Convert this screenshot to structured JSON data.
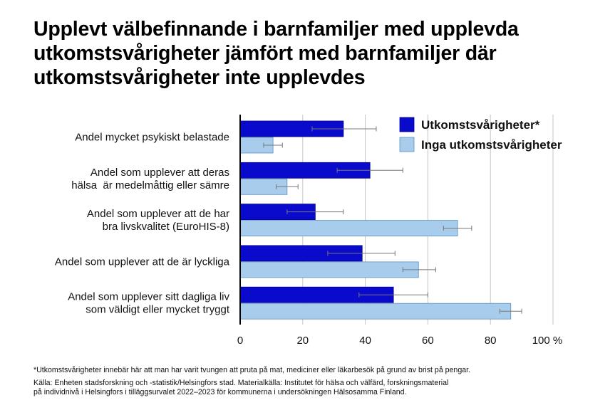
{
  "title": "Upplevt välbefinnande i barnfamiljer med upplevda utkomstsvårigheter jämfört med barnfamiljer där utkomstsvårigheter inte upplevdes",
  "chart_data": {
    "type": "bar",
    "orientation": "horizontal",
    "title": "Upplevt välbefinnande i barnfamiljer med upplevda utkomstsvårigheter jämfört med barnfamiljer där utkomstsvårigheter inte upplevdes",
    "categories": [
      [
        "Andel mycket psykiskt belastade"
      ],
      [
        "Andel som upplever att deras",
        "hälsa  är medelmåttig eller sämre"
      ],
      [
        "Andel som upplever att de har",
        "bra livskvalitet (EuroHIS-8)"
      ],
      [
        "Andel som upplever att de är lyckliga"
      ],
      [
        "Andel som upplever sitt dagliga liv",
        "som väldigt eller mycket tryggt"
      ]
    ],
    "series": [
      {
        "name": "Utkomstsvårigheter*",
        "color": "#0a0acc",
        "values": [
          33,
          41.5,
          24,
          39,
          49
        ],
        "error_low": [
          23,
          31,
          15,
          28,
          38
        ],
        "error_high": [
          43.5,
          52,
          33,
          49.5,
          60
        ]
      },
      {
        "name": "Inga utkomstsvårigheter",
        "color": "#a8cdec",
        "values": [
          10.5,
          15,
          69.5,
          57,
          86.5
        ],
        "error_low": [
          7.5,
          11.5,
          65,
          52,
          83
        ],
        "error_high": [
          13.5,
          18.5,
          74,
          62.5,
          90
        ]
      }
    ],
    "xlim": [
      0,
      100
    ],
    "xticks": [
      "0",
      "20",
      "40",
      "60",
      "80",
      "100 %"
    ],
    "xlabel": "",
    "ylabel": "",
    "grid": true,
    "legend": "top-right"
  },
  "footnote": "*Utkomstsvårigheter innebär här att man har varit tvungen att pruta på mat, mediciner eller läkarbesök på grund av brist på pengar.",
  "source_lines": [
    "Källa: Enheten stadsforskning och -statistik/Helsingfors stad. Materialkälla: Institutet för hälsa och välfärd, forskningsmaterial",
    "på individnivå i Helsingfors i tilläggsurvalet 2022–2023 för kommunerna i undersökningen Hälsosamma Finland."
  ]
}
